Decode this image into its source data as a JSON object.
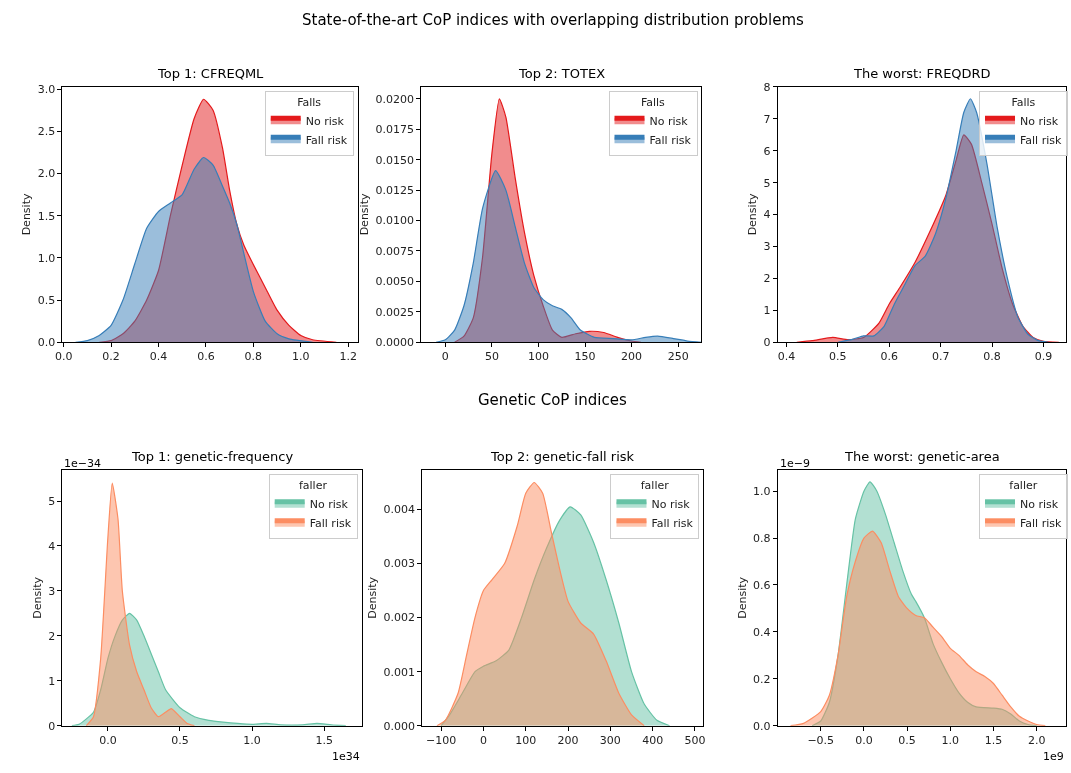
{
  "chart_data": [
    {
      "type": "area",
      "title": "Top 1: CFREQML",
      "ylabel": "Density",
      "legend_title": "Falls",
      "legend": "top right",
      "annotations": [
        "State-of-the-art CoP indices with overlapping distribution problems"
      ],
      "xlim": [
        -0.005,
        1.24
      ],
      "ylim": [
        0,
        3.03
      ],
      "xticks": [
        {
          "value": 0,
          "label": "0.0"
        },
        0.2,
        0.4,
        0.6,
        0.8,
        {
          "value": 1,
          "label": "1.0"
        },
        1.2
      ],
      "yticks": [
        {
          "value": 0,
          "label": "0.0"
        },
        0.5,
        {
          "value": 1,
          "label": "1.0"
        },
        1.5,
        {
          "value": 2,
          "label": "2.0"
        },
        2.5,
        {
          "value": 3,
          "label": "3.0"
        }
      ],
      "series": [
        {
          "name": "No risk",
          "color": "#e41a1c",
          "x": [
            0.15,
            0.2,
            0.25,
            0.3,
            0.35,
            0.4,
            0.45,
            0.5,
            0.55,
            0.59,
            0.63,
            0.67,
            0.7,
            0.73,
            0.76,
            0.8,
            0.85,
            0.9,
            0.95,
            1.0,
            1.05,
            1.15
          ],
          "values": [
            0,
            0.02,
            0.1,
            0.25,
            0.5,
            0.85,
            1.5,
            2.1,
            2.65,
            2.88,
            2.75,
            2.3,
            1.8,
            1.4,
            1.15,
            0.92,
            0.65,
            0.38,
            0.2,
            0.08,
            0.03,
            0
          ]
        },
        {
          "name": "Fall risk",
          "color": "#377eb8",
          "x": [
            0.05,
            0.1,
            0.15,
            0.2,
            0.25,
            0.3,
            0.35,
            0.4,
            0.45,
            0.5,
            0.55,
            0.59,
            0.63,
            0.67,
            0.7,
            0.73,
            0.76,
            0.8,
            0.85,
            0.9,
            0.95,
            1.05
          ],
          "values": [
            0,
            0.02,
            0.08,
            0.2,
            0.5,
            0.93,
            1.35,
            1.55,
            1.65,
            1.75,
            2.05,
            2.19,
            2.1,
            1.85,
            1.65,
            1.4,
            1.05,
            0.6,
            0.25,
            0.1,
            0.04,
            0
          ]
        }
      ]
    },
    {
      "type": "area",
      "title": "Top 2: TOTEX",
      "ylabel": "Density",
      "legend_title": "Falls",
      "legend": "top right",
      "xlim": [
        -26,
        275
      ],
      "ylim": [
        0,
        0.021
      ],
      "xticks": [
        0,
        50,
        100,
        150,
        200,
        250
      ],
      "yticks": [
        {
          "value": 0,
          "label": "0.0000"
        },
        0.0025,
        {
          "value": 0.005,
          "label": "0.0050"
        },
        0.0075,
        {
          "value": 0.01,
          "label": "0.0100"
        },
        0.0125,
        {
          "value": 0.015,
          "label": "0.0150"
        },
        0.0175,
        {
          "value": 0.02,
          "label": "0.0200"
        }
      ],
      "series": [
        {
          "name": "No risk",
          "color": "#e41a1c",
          "x": [
            10,
            20,
            30,
            40,
            50,
            58,
            65,
            75,
            85,
            95,
            105,
            115,
            125,
            140,
            155,
            170,
            185,
            200,
            210
          ],
          "values": [
            0,
            0.0005,
            0.002,
            0.007,
            0.0155,
            0.02,
            0.0185,
            0.0135,
            0.009,
            0.0055,
            0.003,
            0.001,
            0.0004,
            0.0007,
            0.0009,
            0.0008,
            0.0004,
            0.0001,
            0
          ]
        },
        {
          "name": "Fall risk",
          "color": "#377eb8",
          "x": [
            -10,
            0,
            10,
            20,
            30,
            40,
            54,
            65,
            75,
            85,
            95,
            105,
            115,
            125,
            135,
            145,
            160,
            180,
            200,
            215,
            228,
            245,
            260,
            275
          ],
          "values": [
            0,
            0.0002,
            0.001,
            0.003,
            0.0065,
            0.011,
            0.0141,
            0.0125,
            0.0095,
            0.0065,
            0.0045,
            0.0035,
            0.003,
            0.0027,
            0.002,
            0.001,
            0.0004,
            0.0003,
            0.0002,
            0.0004,
            0.0005,
            0.0003,
            0.0001,
            0
          ]
        }
      ]
    },
    {
      "type": "area",
      "title": "The worst: FREQDRD",
      "ylabel": "Density",
      "legend_title": "Falls",
      "legend": "top right",
      "xlim": [
        0.383,
        0.944
      ],
      "ylim": [
        0,
        8.01
      ],
      "xticks": [
        0.4,
        0.5,
        0.6,
        0.7,
        0.8,
        0.9
      ],
      "yticks": [
        0,
        1,
        2,
        3,
        4,
        5,
        6,
        7,
        8
      ],
      "series": [
        {
          "name": "No risk",
          "color": "#e41a1c",
          "x": [
            0.42,
            0.45,
            0.49,
            0.52,
            0.55,
            0.58,
            0.6,
            0.62,
            0.65,
            0.68,
            0.71,
            0.73,
            0.745,
            0.76,
            0.78,
            0.8,
            0.82,
            0.84,
            0.86,
            0.88,
            0.9,
            0.93
          ],
          "values": [
            0,
            0.05,
            0.15,
            0.08,
            0.15,
            0.6,
            1.2,
            1.7,
            2.5,
            3.5,
            4.6,
            5.7,
            6.5,
            6.2,
            5.0,
            3.7,
            2.3,
            1.2,
            0.5,
            0.15,
            0.03,
            0
          ]
        },
        {
          "name": "Fall risk",
          "color": "#377eb8",
          "x": [
            0.5,
            0.53,
            0.55,
            0.57,
            0.59,
            0.61,
            0.63,
            0.65,
            0.67,
            0.69,
            0.71,
            0.73,
            0.745,
            0.758,
            0.77,
            0.79,
            0.81,
            0.83,
            0.85,
            0.87,
            0.89,
            0.91
          ],
          "values": [
            0,
            0.1,
            0.2,
            0.2,
            0.5,
            1.2,
            1.8,
            2.4,
            2.7,
            3.4,
            4.5,
            6.0,
            7.2,
            7.63,
            7.2,
            5.6,
            3.6,
            2.0,
            0.8,
            0.25,
            0.05,
            0
          ]
        }
      ]
    },
    {
      "type": "area",
      "title": "Top 1: genetic-frequency",
      "ylabel": "Density",
      "legend_title": "faller",
      "legend": "top right",
      "annotations": [
        "Genetic CoP indices",
        "1e−34",
        "1e34"
      ],
      "xlim": [
        -0.315,
        1.76
      ],
      "ylim": [
        0,
        5.69
      ],
      "xticks": [
        {
          "value": 0,
          "label": "0.0"
        },
        0.5,
        {
          "value": 1,
          "label": "1.0"
        },
        1.5
      ],
      "yticks": [
        0,
        1,
        2,
        3,
        4,
        5
      ],
      "series": [
        {
          "name": "No risk",
          "color": "#66c2a5",
          "x": [
            -0.25,
            -0.2,
            -0.1,
            -0.05,
            0.0,
            0.05,
            0.1,
            0.15,
            0.2,
            0.25,
            0.3,
            0.35,
            0.4,
            0.5,
            0.6,
            0.7,
            0.8,
            0.9,
            1.0,
            1.1,
            1.2,
            1.35,
            1.45,
            1.55,
            1.65
          ],
          "values": [
            0,
            0.03,
            0.3,
            0.8,
            1.5,
            2.0,
            2.35,
            2.5,
            2.35,
            2.0,
            1.6,
            1.2,
            0.8,
            0.4,
            0.2,
            0.12,
            0.08,
            0.05,
            0.03,
            0.05,
            0.02,
            0.02,
            0.05,
            0.02,
            0
          ]
        },
        {
          "name": "Fall risk",
          "color": "#fc8d62",
          "x": [
            -0.15,
            -0.1,
            -0.05,
            0.0,
            0.03,
            0.07,
            0.1,
            0.15,
            0.2,
            0.25,
            0.3,
            0.35,
            0.4,
            0.44,
            0.5,
            0.55,
            0.6
          ],
          "values": [
            0,
            0.2,
            1.5,
            4.2,
            5.4,
            4.6,
            3.0,
            1.8,
            1.2,
            0.8,
            0.4,
            0.2,
            0.3,
            0.38,
            0.2,
            0.05,
            0
          ]
        }
      ]
    },
    {
      "type": "area",
      "title": "Top 2: genetic-fall risk",
      "ylabel": "Density",
      "legend_title": "faller",
      "legend": "top right",
      "xlim": [
        -145,
        520
      ],
      "ylim": [
        0,
        0.00473
      ],
      "xticks": [
        {
          "value": -100,
          "label": "−100"
        },
        0,
        100,
        200,
        300,
        400,
        500
      ],
      "yticks": [
        {
          "value": 0,
          "label": "0.000"
        },
        0.001,
        0.002,
        0.003,
        0.004
      ],
      "series": [
        {
          "name": "No risk",
          "color": "#66c2a5",
          "x": [
            -100,
            -80,
            -50,
            -20,
            0,
            30,
            60,
            90,
            120,
            150,
            180,
            205,
            230,
            260,
            290,
            320,
            350,
            380,
            410,
            440
          ],
          "values": [
            0,
            0.0002,
            0.0006,
            0.001,
            0.0011,
            0.0012,
            0.0014,
            0.002,
            0.0027,
            0.0033,
            0.0038,
            0.00405,
            0.0039,
            0.0034,
            0.0027,
            0.0019,
            0.001,
            0.0004,
            0.0001,
            0
          ]
        },
        {
          "name": "Fall risk",
          "color": "#fc8d62",
          "x": [
            -110,
            -90,
            -60,
            -40,
            -20,
            0,
            20,
            50,
            80,
            100,
            120,
            140,
            160,
            180,
            200,
            230,
            260,
            290,
            320,
            350,
            380
          ],
          "values": [
            0,
            0.0001,
            0.0006,
            0.0013,
            0.002,
            0.0025,
            0.0027,
            0.003,
            0.0037,
            0.0043,
            0.0045,
            0.0043,
            0.0036,
            0.0029,
            0.0023,
            0.0019,
            0.0017,
            0.0012,
            0.0006,
            0.0002,
            0
          ]
        }
      ]
    },
    {
      "type": "area",
      "title": "The worst: genetic-area",
      "ylabel": "Density",
      "legend_title": "faller",
      "legend": "top right",
      "annotations": [
        "1e−9",
        "1e9"
      ],
      "xlim": [
        -0.998,
        2.34
      ],
      "ylim": [
        0,
        1.09
      ],
      "xticks": [
        {
          "value": -0.5,
          "label": "−0.5"
        },
        {
          "value": 0,
          "label": "0.0"
        },
        0.5,
        {
          "value": 1,
          "label": "1.0"
        },
        1.5,
        {
          "value": 2,
          "label": "2.0"
        }
      ],
      "yticks": [
        {
          "value": 0,
          "label": "0.0"
        },
        0.2,
        0.4,
        0.6,
        0.8,
        {
          "value": 1,
          "label": "1.0"
        }
      ],
      "series": [
        {
          "name": "No risk",
          "color": "#66c2a5",
          "x": [
            -0.6,
            -0.5,
            -0.4,
            -0.3,
            -0.2,
            -0.1,
            0.0,
            0.07,
            0.15,
            0.25,
            0.35,
            0.45,
            0.55,
            0.6,
            0.7,
            0.8,
            0.9,
            1.0,
            1.1,
            1.2,
            1.3,
            1.5,
            1.6,
            1.7,
            1.8,
            1.9,
            2.0
          ],
          "values": [
            0,
            0.02,
            0.1,
            0.3,
            0.6,
            0.88,
            1.0,
            1.04,
            1.0,
            0.9,
            0.78,
            0.66,
            0.56,
            0.53,
            0.46,
            0.35,
            0.27,
            0.2,
            0.14,
            0.1,
            0.08,
            0.075,
            0.07,
            0.05,
            0.02,
            0.005,
            0
          ]
        },
        {
          "name": "Fall risk",
          "color": "#fc8d62",
          "x": [
            -0.85,
            -0.7,
            -0.5,
            -0.4,
            -0.3,
            -0.2,
            -0.1,
            0.0,
            0.1,
            0.2,
            0.3,
            0.4,
            0.5,
            0.6,
            0.7,
            0.8,
            0.9,
            1.0,
            1.1,
            1.2,
            1.3,
            1.4,
            1.5,
            1.6,
            1.7,
            1.8,
            1.9,
            2.0,
            2.1
          ],
          "values": [
            0,
            0.01,
            0.06,
            0.13,
            0.3,
            0.55,
            0.7,
            0.8,
            0.83,
            0.78,
            0.66,
            0.55,
            0.5,
            0.47,
            0.46,
            0.42,
            0.38,
            0.33,
            0.3,
            0.26,
            0.23,
            0.21,
            0.18,
            0.13,
            0.08,
            0.04,
            0.02,
            0.005,
            0
          ]
        }
      ]
    }
  ]
}
